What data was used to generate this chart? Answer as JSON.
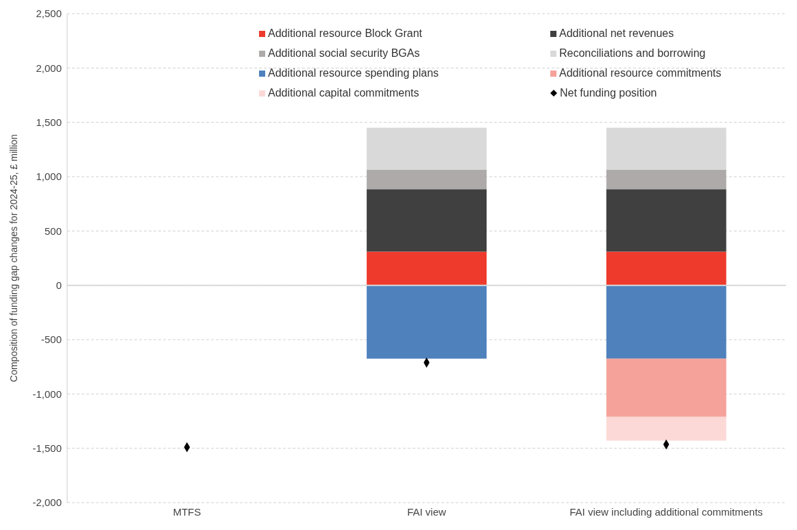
{
  "chart_data": {
    "type": "bar",
    "stacked": true,
    "ylabel": "Composition of funding gap changes for 2024-25, £ million",
    "categories": [
      "MTFS",
      "FAI view",
      "FAI view including additional commitments"
    ],
    "series": [
      {
        "name": "Additional resource Block Grant",
        "color": "#ee3a2c",
        "values": [
          null,
          310,
          310
        ]
      },
      {
        "name": "Additional net revenues",
        "color": "#404040",
        "values": [
          null,
          575,
          575
        ]
      },
      {
        "name": "Additional social security BGAs",
        "color": "#aeaaaa",
        "values": [
          null,
          180,
          180
        ]
      },
      {
        "name": "Reconciliations and borrowing",
        "color": "#d9d9d9",
        "values": [
          null,
          385,
          385
        ]
      },
      {
        "name": "Additional resource spending plans",
        "color": "#4f81bd",
        "values": [
          null,
          -675,
          -675
        ]
      },
      {
        "name": "Additional resource commitments",
        "color": "#f5a29a",
        "values": [
          null,
          null,
          -535
        ]
      },
      {
        "name": "Additional capital commitments",
        "color": "#fcd9d7",
        "values": [
          null,
          null,
          -220
        ]
      },
      {
        "name": "Net funding position",
        "type": "scatter",
        "marker": "diamond",
        "color": "#000000",
        "x": [
          "MTFS",
          "FAI view",
          "FAI view including additional commitments"
        ],
        "values": [
          -1490,
          -711,
          -1465
        ]
      }
    ],
    "ylim": [
      -2000,
      2500
    ],
    "yticks": [
      {
        "value": -2000,
        "label": "-2,000"
      },
      {
        "value": -1500,
        "label": "-1,500"
      },
      {
        "value": -1000,
        "label": "-1,000"
      },
      -500,
      0,
      500,
      {
        "value": 1000,
        "label": "1,000"
      },
      {
        "value": 1500,
        "label": "1,500"
      },
      {
        "value": 2000,
        "label": "2,000"
      },
      {
        "value": 2500,
        "label": "2,500"
      }
    ],
    "grid": "y",
    "legend": "top",
    "ref_lines": [
      {
        "axis": "y",
        "value": 0,
        "color": "#d9d9d9"
      }
    ]
  }
}
